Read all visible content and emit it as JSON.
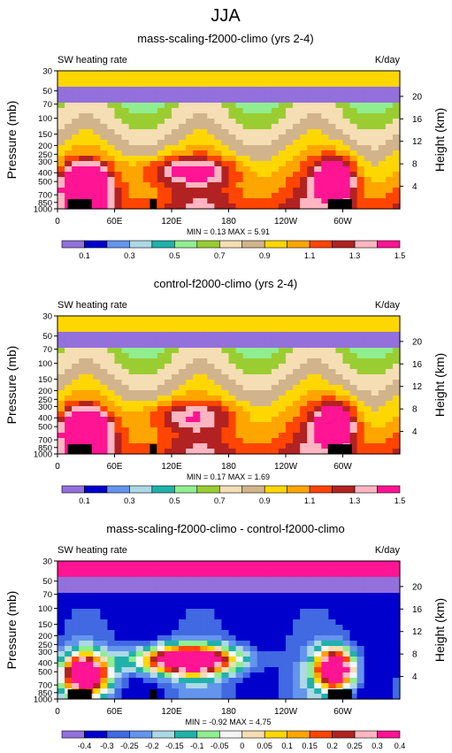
{
  "page_title": "JJA",
  "chart_data": [
    {
      "type": "heatmap",
      "title": "mass-scaling-f2000-climo (yrs 2-4)",
      "left_label": "SW heating rate",
      "right_label": "K/day",
      "xlabel": "",
      "ylabel": "Pressure (mb)",
      "y2label": "Height (km)",
      "x_ticks": [
        "0",
        "60E",
        "120E",
        "180",
        "120W",
        "60W"
      ],
      "y_ticks": [
        "30",
        "50",
        "70",
        "100",
        "150",
        "200",
        "250",
        "300",
        "400",
        "500",
        "700",
        "850",
        "1000"
      ],
      "y2_ticks": [
        "20",
        "16",
        "12",
        "8",
        "4"
      ],
      "stats": "MIN =   0.13  MAX =    5.91",
      "colorbar_labels": [
        "0.1",
        "0.3",
        "0.5",
        "0.7",
        "0.9",
        "1.1",
        "1.3",
        "1.5"
      ],
      "colors": [
        "#9370db",
        "#0000cd",
        "#6495ed",
        "#add8e6",
        "#20b2aa",
        "#90ee90",
        "#9acd32",
        "#f5deb3",
        "#d2b48c",
        "#ffd700",
        "#ffa500",
        "#ff4500",
        "#b22222",
        "#ffb6c1",
        "#ff1493"
      ]
    },
    {
      "type": "heatmap",
      "title": "control-f2000-climo (yrs 2-4)",
      "left_label": "SW heating rate",
      "right_label": "K/day",
      "xlabel": "",
      "ylabel": "Pressure (mb)",
      "y2label": "Height (km)",
      "x_ticks": [
        "0",
        "60E",
        "120E",
        "180",
        "120W",
        "60W"
      ],
      "y_ticks": [
        "30",
        "50",
        "70",
        "100",
        "150",
        "200",
        "250",
        "300",
        "400",
        "500",
        "700",
        "850",
        "1000"
      ],
      "y2_ticks": [
        "20",
        "16",
        "12",
        "8",
        "4"
      ],
      "stats": "MIN =   0.17  MAX =    1.69",
      "colorbar_labels": [
        "0.1",
        "0.3",
        "0.5",
        "0.7",
        "0.9",
        "1.1",
        "1.3",
        "1.5"
      ],
      "colors": [
        "#9370db",
        "#0000cd",
        "#6495ed",
        "#add8e6",
        "#20b2aa",
        "#90ee90",
        "#9acd32",
        "#f5deb3",
        "#d2b48c",
        "#ffd700",
        "#ffa500",
        "#ff4500",
        "#b22222",
        "#ffb6c1",
        "#ff1493"
      ]
    },
    {
      "type": "heatmap",
      "title": "mass-scaling-f2000-climo - control-f2000-climo",
      "left_label": "SW heating rate",
      "right_label": "K/day",
      "xlabel": "",
      "ylabel": "Pressure (mb)",
      "y2label": "Height (km)",
      "x_ticks": [
        "0",
        "60E",
        "120E",
        "180",
        "120W",
        "60W"
      ],
      "y_ticks": [
        "30",
        "50",
        "70",
        "100",
        "150",
        "200",
        "250",
        "300",
        "400",
        "500",
        "700",
        "850",
        "1000"
      ],
      "y2_ticks": [
        "20",
        "16",
        "12",
        "8",
        "4"
      ],
      "stats": "MIN =  -0.92  MAX =    4.75",
      "colorbar_labels": [
        "-0.4",
        "-0.3",
        "-0.25",
        "-0.2",
        "-0.15",
        "-0.1",
        "-0.05",
        "0",
        "0.05",
        "0.1",
        "0.15",
        "0.2",
        "0.25",
        "0.3",
        "0.4"
      ],
      "colors": [
        "#9370db",
        "#0000cd",
        "#4169e1",
        "#6495ed",
        "#add8e6",
        "#20b2aa",
        "#90ee90",
        "#f5f5f5",
        "#f5deb3",
        "#ffd700",
        "#ffa500",
        "#ff4500",
        "#b22222",
        "#ffb6c1",
        "#ff1493",
        "#ff1493"
      ]
    }
  ]
}
